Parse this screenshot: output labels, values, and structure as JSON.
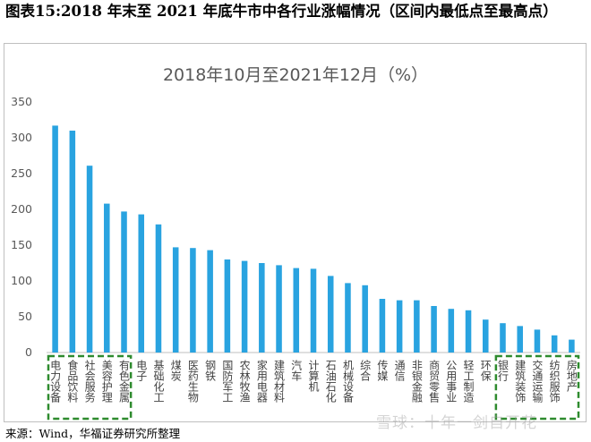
{
  "figure": {
    "title": "图表15:2018 年末至 2021 年底牛市中各行业涨幅情况（区间内最低点至最高点）",
    "source": "来源：Wind，华福证券研究所整理",
    "watermark": "雪球：十年一剑自开花"
  },
  "colors": {
    "bar": "#29a3e0",
    "highlight_box": "#2e8b2e",
    "axis": "#bfbfbf",
    "text": "#595959"
  },
  "chart_data": {
    "type": "bar",
    "title": "2018年10月至2021年12月（%）",
    "categories": [
      "电力设备",
      "食品饮料",
      "社会服务",
      "美容护理",
      "有色金属",
      "电子",
      "基础化工",
      "煤炭",
      "医药生物",
      "钢铁",
      "国防军工",
      "农林牧渔",
      "家用电器",
      "建筑材料",
      "汽车",
      "计算机",
      "石油石化",
      "机械设备",
      "综合",
      "传媒",
      "通信",
      "非银金融",
      "商贸零售",
      "公用事业",
      "轻工制造",
      "环保",
      "银行",
      "建筑装饰",
      "交通运输",
      "纺织服饰",
      "房地产"
    ],
    "values": [
      317,
      310,
      261,
      208,
      197,
      193,
      179,
      147,
      146,
      143,
      130,
      128,
      125,
      122,
      118,
      117,
      107,
      97,
      94,
      75,
      73,
      73,
      65,
      61,
      59,
      46,
      41,
      37,
      32,
      24,
      18
    ],
    "ylim": [
      0,
      350
    ],
    "yticks": [
      "0",
      "50",
      "100",
      "150",
      "200",
      "250",
      "300",
      "350"
    ],
    "grid": false,
    "legend": false,
    "highlight_groups": [
      [
        "电力设备",
        "食品饮料",
        "社会服务",
        "美容护理",
        "有色金属"
      ],
      [
        "银行",
        "建筑装饰",
        "交通运输",
        "纺织服饰",
        "房地产"
      ]
    ]
  }
}
